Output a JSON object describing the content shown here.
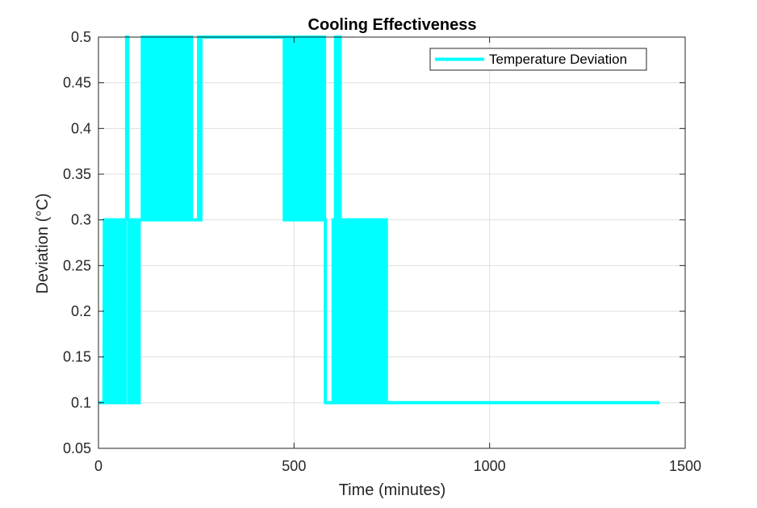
{
  "chart_data": {
    "type": "line",
    "title": "Cooling Effectiveness",
    "xlabel": "Time (minutes)",
    "ylabel": "Deviation (°C)",
    "xlim": [
      0,
      1500
    ],
    "ylim": [
      0.05,
      0.5
    ],
    "xticks": [
      0,
      500,
      1000,
      1500
    ],
    "yticks": [
      0.05,
      0.1,
      0.15,
      0.2,
      0.25,
      0.3,
      0.35,
      0.4,
      0.45,
      0.5
    ],
    "xtick_labels": [
      "0",
      "500",
      "1000",
      "1500"
    ],
    "ytick_labels": [
      "0.05",
      "0.1",
      "0.15",
      "0.2",
      "0.25",
      "0.3",
      "0.35",
      "0.4",
      "0.45",
      "0.5"
    ],
    "grid": true,
    "legend_position": "top-right",
    "series": [
      {
        "name": "Temperature Deviation",
        "color": "#00ffff",
        "x": [
          0,
          14,
          15,
          20,
          20,
          25,
          25,
          30,
          30,
          35,
          35,
          38,
          38,
          42,
          42,
          46,
          46,
          52,
          52,
          58,
          58,
          63,
          63,
          66,
          66,
          69,
          69,
          72,
          72,
          75,
          75,
          78,
          78,
          80,
          80,
          84,
          84,
          88,
          88,
          92,
          92,
          96,
          96,
          100,
          100,
          104,
          104,
          112,
          112,
          118,
          118,
          122,
          122,
          126,
          126,
          130,
          130,
          134,
          134,
          138,
          138,
          142,
          142,
          146,
          146,
          150,
          150,
          155,
          155,
          160,
          160,
          165,
          165,
          170,
          170,
          175,
          175,
          180,
          180,
          185,
          185,
          190,
          190,
          195,
          195,
          200,
          200,
          205,
          205,
          210,
          210,
          215,
          215,
          220,
          220,
          225,
          225,
          228,
          228,
          234,
          234,
          238,
          238,
          256,
          256,
          260,
          260,
          262,
          262,
          475,
          475,
          480,
          480,
          485,
          485,
          490,
          490,
          495,
          495,
          500,
          500,
          505,
          505,
          510,
          510,
          515,
          515,
          520,
          520,
          525,
          525,
          530,
          530,
          535,
          535,
          540,
          540,
          545,
          545,
          550,
          550,
          555,
          555,
          560,
          560,
          565,
          565,
          568,
          568,
          572,
          572,
          575,
          575,
          578,
          578,
          580,
          580,
          600,
          600,
          603,
          603,
          606,
          606,
          610,
          610,
          614,
          614,
          618,
          618,
          622,
          622,
          626,
          626,
          630,
          630,
          634,
          634,
          638,
          638,
          642,
          642,
          646,
          646,
          650,
          650,
          654,
          654,
          658,
          658,
          662,
          662,
          666,
          666,
          670,
          670,
          674,
          674,
          678,
          678,
          682,
          682,
          688,
          688,
          694,
          694,
          700,
          700,
          705,
          705,
          710,
          710,
          714,
          714,
          718,
          718,
          722,
          722,
          728,
          728,
          732,
          732,
          736,
          736,
          1435
        ],
        "values": [
          0.1,
          0.1,
          0.3,
          0.3,
          0.1,
          0.1,
          0.3,
          0.3,
          0.1,
          0.1,
          0.3,
          0.3,
          0.1,
          0.1,
          0.3,
          0.3,
          0.1,
          0.1,
          0.3,
          0.3,
          0.1,
          0.1,
          0.3,
          0.3,
          0.1,
          0.1,
          0.3,
          0.3,
          0.5,
          0.5,
          0.3,
          0.3,
          0.1,
          0.1,
          0.3,
          0.3,
          0.1,
          0.1,
          0.3,
          0.3,
          0.1,
          0.1,
          0.3,
          0.3,
          0.1,
          0.1,
          0.3,
          0.3,
          0.5,
          0.5,
          0.3,
          0.3,
          0.5,
          0.5,
          0.3,
          0.3,
          0.5,
          0.5,
          0.3,
          0.3,
          0.5,
          0.5,
          0.3,
          0.3,
          0.5,
          0.5,
          0.3,
          0.3,
          0.5,
          0.5,
          0.3,
          0.3,
          0.5,
          0.5,
          0.3,
          0.3,
          0.5,
          0.5,
          0.3,
          0.3,
          0.5,
          0.5,
          0.3,
          0.3,
          0.5,
          0.5,
          0.3,
          0.3,
          0.5,
          0.5,
          0.3,
          0.3,
          0.5,
          0.5,
          0.3,
          0.3,
          0.5,
          0.5,
          0.3,
          0.3,
          0.5,
          0.5,
          0.3,
          0.3,
          0.5,
          0.5,
          0.3,
          0.3,
          0.5,
          0.5,
          0.3,
          0.3,
          0.5,
          0.5,
          0.3,
          0.3,
          0.5,
          0.5,
          0.3,
          0.3,
          0.5,
          0.5,
          0.3,
          0.3,
          0.5,
          0.5,
          0.3,
          0.3,
          0.5,
          0.5,
          0.3,
          0.3,
          0.5,
          0.5,
          0.3,
          0.3,
          0.5,
          0.5,
          0.3,
          0.3,
          0.5,
          0.5,
          0.3,
          0.3,
          0.5,
          0.5,
          0.3,
          0.3,
          0.5,
          0.5,
          0.3,
          0.3,
          0.5,
          0.5,
          0.3,
          0.3,
          0.1,
          0.1,
          0.3,
          0.3,
          0.1,
          0.1,
          0.5,
          0.5,
          0.1,
          0.1,
          0.5,
          0.5,
          0.3,
          0.3,
          0.1,
          0.1,
          0.3,
          0.3,
          0.1,
          0.1,
          0.3,
          0.3,
          0.1,
          0.1,
          0.3,
          0.3,
          0.1,
          0.1,
          0.3,
          0.3,
          0.1,
          0.1,
          0.3,
          0.3,
          0.1,
          0.1,
          0.3,
          0.3,
          0.1,
          0.1,
          0.3,
          0.3,
          0.1,
          0.1,
          0.3,
          0.3,
          0.1,
          0.1,
          0.3,
          0.3,
          0.1,
          0.1,
          0.3,
          0.3,
          0.1,
          0.1,
          0.3,
          0.3,
          0.1,
          0.1,
          0.3,
          0.3,
          0.1,
          0.1,
          0.3,
          0.3,
          0.1,
          0.1
        ]
      }
    ]
  }
}
